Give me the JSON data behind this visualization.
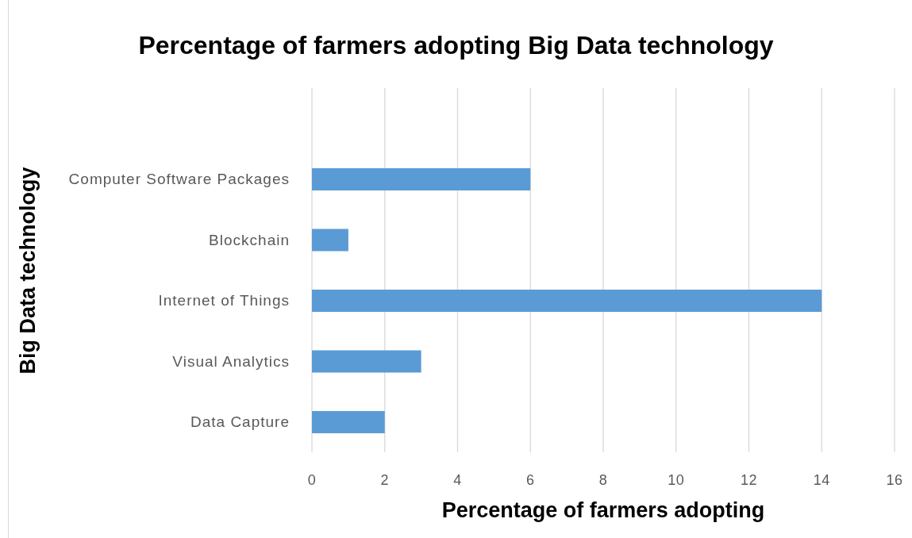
{
  "chart_data": {
    "type": "bar",
    "orientation": "horizontal",
    "title": "Percentage of farmers adopting Big Data technology",
    "xlabel": "Percentage of farmers adopting",
    "ylabel": "Big Data technology",
    "categories": [
      null,
      "Computer Software Packages",
      "Blockchain",
      "Internet of Things",
      "Visual Analytics",
      "Data Capture"
    ],
    "values": [
      null,
      6,
      1,
      14,
      3,
      2
    ],
    "color": "#5b9bd5",
    "xlim": [
      0,
      16
    ],
    "xticks": [
      0,
      2,
      4,
      6,
      8,
      10,
      12,
      14,
      16
    ],
    "grid": "x"
  }
}
